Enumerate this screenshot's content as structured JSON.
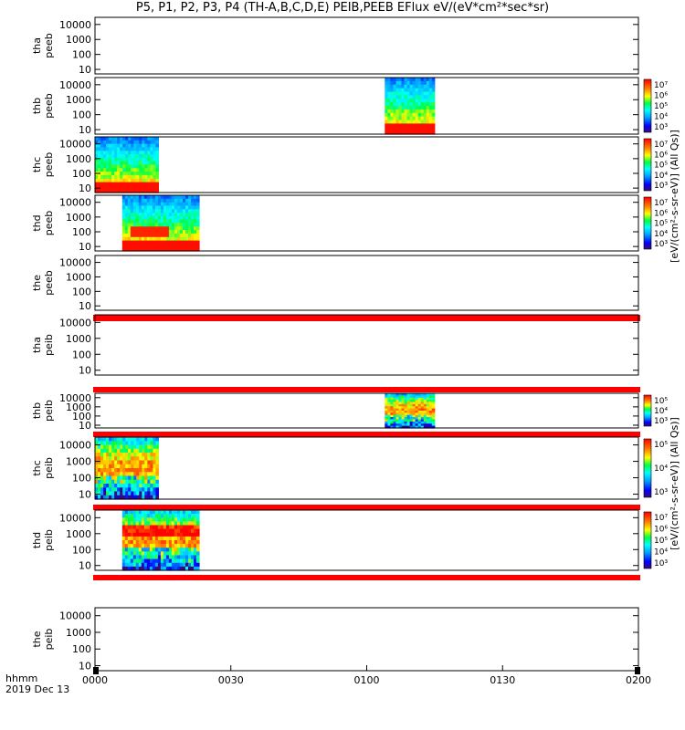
{
  "title": "P5, P1, P2, P3, P4 (TH-A,B,C,D,E) PEIB,PEEB EFlux eV/(eV*cm²*sec*sr)",
  "chart_data": {
    "type": "heatmap",
    "xaxis": {
      "tick_labels": [
        "0000",
        "0030",
        "0100",
        "0130",
        "0200"
      ],
      "tick_values_min": [
        0,
        30,
        60,
        90,
        120
      ],
      "range_min": [
        0,
        120
      ],
      "label_top": "hhmm",
      "label_bottom": "2019 Dec 13"
    },
    "ytick_labels": [
      "10000",
      "1000",
      "100",
      "10"
    ],
    "ytick_values": [
      10000,
      1000,
      100,
      10
    ],
    "yrange": [
      5,
      30000
    ],
    "colorbar_labels": {
      "electron": "[eV/(cm²-s-sr-eV)] (All Qs)]",
      "ion": "[eV/(cm²-s-sr-eV)] (All Qs)]"
    },
    "colorbar_ticks": {
      "electron": [
        "10⁷",
        "10⁶",
        "10⁵",
        "10⁴",
        "10³"
      ],
      "ion_b": [
        "10⁵",
        "10⁴",
        "10³"
      ],
      "ion_c": [
        "10⁵",
        "10⁴",
        "10³"
      ],
      "ion_d": [
        "10⁷",
        "10⁶",
        "10⁵",
        "10⁴",
        "10³"
      ]
    },
    "panels": [
      {
        "label1": "tha",
        "label2": "peeb",
        "data_start_min": null,
        "data_end_min": null,
        "colorbar": null
      },
      {
        "label1": "thb",
        "label2": "peeb",
        "data_start_min": 64,
        "data_end_min": 75,
        "colorbar": "electron"
      },
      {
        "label1": "thc",
        "label2": "peeb",
        "data_start_min": 0,
        "data_end_min": 14,
        "colorbar": "electron"
      },
      {
        "label1": "thd",
        "label2": "peeb",
        "data_start_min": 6,
        "data_end_min": 23,
        "colorbar": "electron"
      },
      {
        "label1": "the",
        "label2": "peeb",
        "data_start_min": null,
        "data_end_min": null,
        "colorbar": null
      },
      {
        "label1": "tha",
        "label2": "peib",
        "data_start_min": null,
        "data_end_min": null,
        "colorbar": null
      },
      {
        "label1": "thb",
        "label2": "peib",
        "data_start_min": 64,
        "data_end_min": 75,
        "colorbar": "ion_b"
      },
      {
        "label1": "thc",
        "label2": "peib",
        "data_start_min": 0,
        "data_end_min": 14,
        "colorbar": "ion_c"
      },
      {
        "label1": "thd",
        "label2": "peib",
        "data_start_min": 6,
        "data_end_min": 23,
        "colorbar": "ion_d"
      },
      {
        "label1": "the",
        "label2": "peib",
        "data_start_min": null,
        "data_end_min": null,
        "colorbar": null
      }
    ],
    "grid": false
  }
}
